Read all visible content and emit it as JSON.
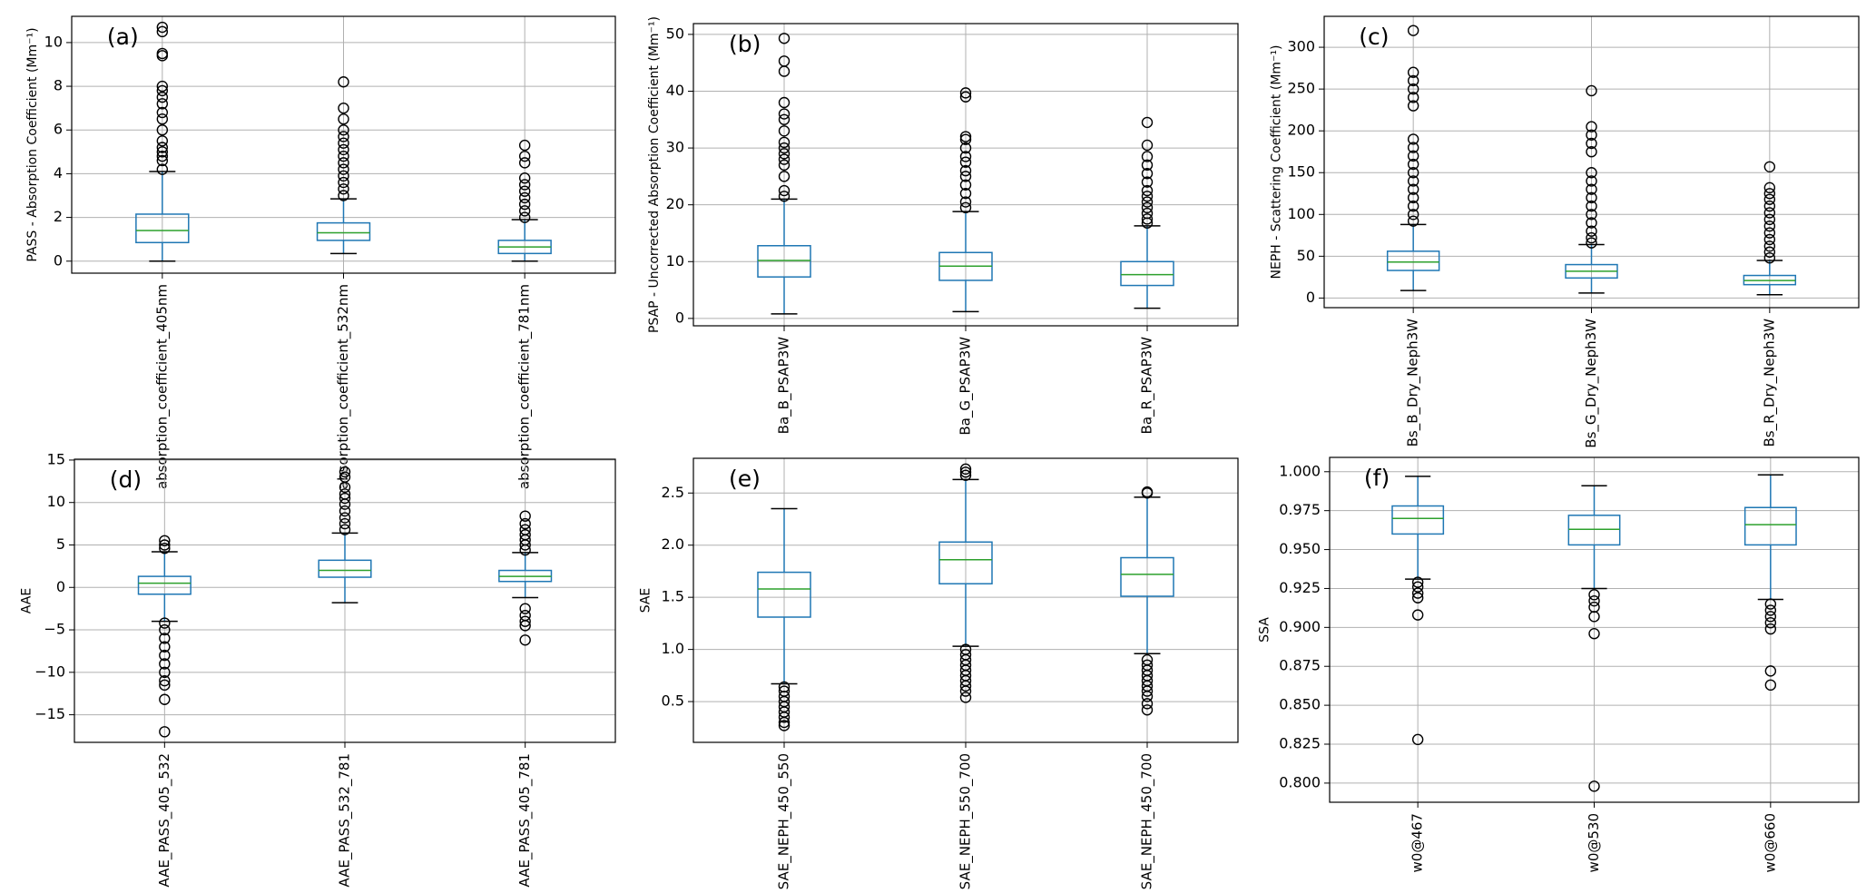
{
  "chart_data": [
    {
      "type": "box",
      "annotation": "(a)",
      "ylabel": "PASS - Absorption Coefficient (Mm⁻¹)",
      "categories": [
        "absorption_coefficient_405nm",
        "absorption_coefficient_532nm",
        "absorption_coefficient_781nm"
      ],
      "boxes": [
        {
          "whislo": 0,
          "q1": 0.85,
          "med": 1.4,
          "q3": 2.15,
          "whishi": 4.1,
          "fliers": [
            4.2,
            4.6,
            4.8,
            5.0,
            5.2,
            5.5,
            6.0,
            6.5,
            6.8,
            7.2,
            7.5,
            7.8,
            8.0,
            9.4,
            9.5,
            10.5,
            10.7
          ]
        },
        {
          "whislo": 0.35,
          "q1": 0.95,
          "med": 1.3,
          "q3": 1.75,
          "whishi": 2.85,
          "fliers": [
            3.0,
            3.3,
            3.6,
            3.9,
            4.2,
            4.5,
            4.8,
            5.1,
            5.4,
            5.7,
            6.0,
            6.5,
            7.0,
            8.2
          ]
        },
        {
          "whislo": 0.0,
          "q1": 0.35,
          "med": 0.65,
          "q3": 0.95,
          "whishi": 1.9,
          "fliers": [
            2.0,
            2.3,
            2.6,
            2.9,
            3.2,
            3.5,
            3.8,
            4.5,
            4.8,
            5.3
          ]
        }
      ],
      "ylim": [
        -0.55,
        11.2
      ],
      "yticks": [
        0,
        2,
        4,
        6,
        8,
        10
      ],
      "grid": true,
      "color": "#1f77b4",
      "median_color": "#2ca02c"
    },
    {
      "type": "box",
      "annotation": "(b)",
      "ylabel": "PSAP - Uncorrected Absorption Coefficient (Mm⁻¹)",
      "categories": [
        "Ba_B_PSAP3W",
        "Ba_G_PSAP3W",
        "Ba_R_PSAP3W"
      ],
      "boxes": [
        {
          "whislo": 0.8,
          "q1": 7.3,
          "med": 10.2,
          "q3": 12.8,
          "whishi": 21,
          "fliers": [
            21.5,
            22.5,
            25,
            27,
            28,
            29,
            30,
            31,
            33,
            35,
            36,
            38,
            43.5,
            45.3,
            49.3
          ]
        },
        {
          "whislo": 1.2,
          "q1": 6.7,
          "med": 9.2,
          "q3": 11.6,
          "whishi": 18.8,
          "fliers": [
            19.5,
            20.5,
            22,
            23.5,
            25,
            26,
            27.5,
            28.5,
            30,
            31.5,
            32,
            39,
            39.7
          ]
        },
        {
          "whislo": 1.8,
          "q1": 5.8,
          "med": 7.7,
          "q3": 10,
          "whishi": 16.3,
          "fliers": [
            16.8,
            17.5,
            18.5,
            19.5,
            20.5,
            21.5,
            22.5,
            24,
            25.5,
            27,
            28.5,
            30.5,
            34.5
          ]
        }
      ],
      "ylim": [
        -1.3,
        51.9
      ],
      "yticks": [
        0,
        10,
        20,
        30,
        40,
        50
      ],
      "grid": true,
      "color": "#1f77b4",
      "median_color": "#2ca02c"
    },
    {
      "type": "box",
      "annotation": "(c)",
      "ylabel": "NEPH - Scattering Coefficient (Mm⁻¹)",
      "categories": [
        "Bs_B_Dry_Neph3W",
        "Bs_G_Dry_Neph3W",
        "Bs_R_Dry_Neph3W"
      ],
      "boxes": [
        {
          "whislo": 9,
          "q1": 33,
          "med": 43,
          "q3": 56,
          "whishi": 88,
          "fliers": [
            92,
            100,
            110,
            120,
            130,
            140,
            150,
            160,
            170,
            180,
            190,
            230,
            240,
            250,
            260,
            270,
            320
          ]
        },
        {
          "whislo": 6,
          "q1": 24,
          "med": 32,
          "q3": 40,
          "whishi": 64,
          "fliers": [
            66,
            72,
            80,
            90,
            100,
            110,
            120,
            130,
            140,
            150,
            175,
            185,
            195,
            205,
            248
          ]
        },
        {
          "whislo": 4,
          "q1": 16,
          "med": 21,
          "q3": 27,
          "whishi": 45,
          "fliers": [
            48,
            55,
            62,
            70,
            78,
            86,
            94,
            102,
            110,
            118,
            125,
            132,
            157
          ]
        }
      ],
      "ylim": [
        -11.5,
        337
      ],
      "yticks": [
        0,
        50,
        100,
        150,
        200,
        250,
        300
      ],
      "grid": true,
      "color": "#1f77b4",
      "median_color": "#2ca02c"
    },
    {
      "type": "box",
      "annotation": "(d)",
      "ylabel": "AAE",
      "categories": [
        "AAE_PASS_405_532",
        "AAE_PASS_532_781",
        "AAE_PASS_405_781"
      ],
      "boxes": [
        {
          "whislo": -4.0,
          "q1": -0.8,
          "med": 0.5,
          "q3": 1.3,
          "whishi": 4.2,
          "fliers": [
            -4.2,
            -5,
            -6,
            -7,
            -8,
            -9,
            -10,
            -11,
            -11.5,
            -13.2,
            -17,
            4.6,
            5,
            5.5
          ]
        },
        {
          "whislo": -1.8,
          "q1": 1.2,
          "med": 2.0,
          "q3": 3.2,
          "whishi": 6.4,
          "fliers": [
            6.8,
            7.5,
            8.2,
            9,
            9.8,
            10.5,
            11,
            11.8,
            13,
            13.6
          ]
        },
        {
          "whislo": -1.2,
          "q1": 0.7,
          "med": 1.3,
          "q3": 2.0,
          "whishi": 4.1,
          "fliers": [
            -2.5,
            -3.3,
            -4,
            -4.5,
            -6.2,
            4.4,
            5,
            5.6,
            6.2,
            6.8,
            7.5,
            8.4
          ]
        }
      ],
      "ylim": [
        -18.25,
        15.1
      ],
      "yticks": [
        {
          "value": -15,
          "label": "−15"
        },
        {
          "value": -10,
          "label": "−10"
        },
        {
          "value": -5,
          "label": "−5"
        },
        0,
        5,
        10,
        15
      ],
      "grid": true,
      "color": "#1f77b4",
      "median_color": "#2ca02c"
    },
    {
      "type": "box",
      "annotation": "(e)",
      "ylabel": "SAE",
      "categories": [
        "SAE_NEPH_450_550",
        "SAE_NEPH_550_700",
        "SAE_NEPH_450_700"
      ],
      "boxes": [
        {
          "whislo": 0.67,
          "q1": 1.31,
          "med": 1.58,
          "q3": 1.74,
          "whishi": 2.35,
          "fliers": [
            0.27,
            0.3,
            0.35,
            0.4,
            0.45,
            0.5,
            0.55,
            0.6,
            0.64
          ]
        },
        {
          "whislo": 1.03,
          "q1": 1.63,
          "med": 1.86,
          "q3": 2.03,
          "whishi": 2.63,
          "fliers": [
            0.54,
            0.6,
            0.65,
            0.7,
            0.75,
            0.8,
            0.85,
            0.9,
            0.95,
            1.0,
            2.67,
            2.7,
            2.73
          ]
        },
        {
          "whislo": 0.96,
          "q1": 1.51,
          "med": 1.72,
          "q3": 1.88,
          "whishi": 2.46,
          "fliers": [
            0.42,
            0.48,
            0.55,
            0.6,
            0.65,
            0.7,
            0.75,
            0.8,
            0.85,
            0.9,
            2.5,
            2.51
          ]
        }
      ],
      "ylim": [
        0.109,
        2.833
      ],
      "yticks": [
        0.5,
        {
          "value": 1,
          "label": "1.0"
        },
        1.5,
        {
          "value": 2,
          "label": "2.0"
        },
        2.5
      ],
      "grid": true,
      "color": "#1f77b4",
      "median_color": "#2ca02c"
    },
    {
      "type": "box",
      "annotation": "(f)",
      "ylabel": "SSA",
      "categories": [
        "w0@467",
        "w0@530",
        "w0@660"
      ],
      "boxes": [
        {
          "whislo": 0.931,
          "q1": 0.96,
          "med": 0.97,
          "q3": 0.978,
          "whishi": 0.997,
          "fliers": [
            0.929,
            0.926,
            0.922,
            0.919,
            0.908,
            0.828
          ]
        },
        {
          "whislo": 0.925,
          "q1": 0.953,
          "med": 0.963,
          "q3": 0.972,
          "whishi": 0.991,
          "fliers": [
            0.921,
            0.917,
            0.913,
            0.907,
            0.896,
            0.798
          ]
        },
        {
          "whislo": 0.918,
          "q1": 0.953,
          "med": 0.966,
          "q3": 0.977,
          "whishi": 0.998,
          "fliers": [
            0.915,
            0.911,
            0.907,
            0.903,
            0.899,
            0.872,
            0.863
          ]
        }
      ],
      "ylim": [
        0.7877,
        1.0092
      ],
      "yticks": [
        {
          "value": 0.8,
          "label": "0.800"
        },
        0.825,
        {
          "value": 0.85,
          "label": "0.850"
        },
        0.875,
        {
          "value": 0.9,
          "label": "0.900"
        },
        0.925,
        {
          "value": 0.95,
          "label": "0.950"
        },
        0.975,
        {
          "value": 1,
          "label": "1.000"
        }
      ],
      "grid": true,
      "color": "#1f77b4",
      "median_color": "#2ca02c"
    }
  ]
}
